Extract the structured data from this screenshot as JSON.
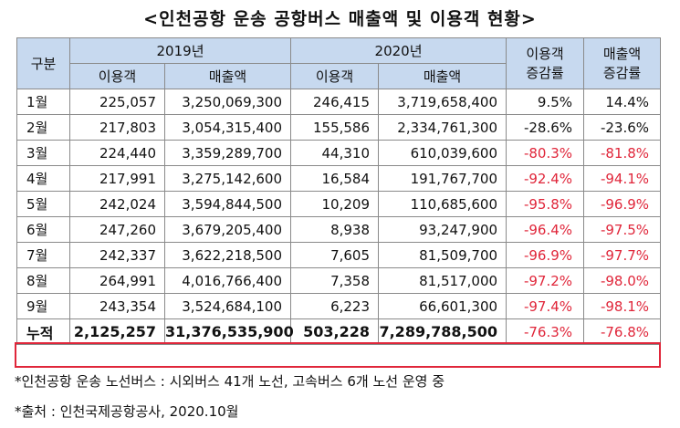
{
  "title": "<인천공항 운송 공항버스 매출액 및 이용객 현황>",
  "headers": {
    "category": "구분",
    "year1": "2019년",
    "year2": "2020년",
    "passengers": "이용객",
    "revenue": "매출액",
    "pass_change": "이용객\n증감률",
    "rev_change": "매출액\n증감률"
  },
  "rows": [
    {
      "month": "1월",
      "p2019": "225,057",
      "r2019": "3,250,069,300",
      "p2020": "246,415",
      "r2020": "3,719,658,400",
      "pchg": "9.5%",
      "rchg": "14.4%"
    },
    {
      "month": "2월",
      "p2019": "217,803",
      "r2019": "3,054,315,400",
      "p2020": "155,586",
      "r2020": "2,334,761,300",
      "pchg": "-28.6%",
      "rchg": "-23.6%"
    },
    {
      "month": "3월",
      "p2019": "224,440",
      "r2019": "3,359,289,700",
      "p2020": "44,310",
      "r2020": "610,039,600",
      "pchg": "-80.3%",
      "rchg": "-81.8%"
    },
    {
      "month": "4월",
      "p2019": "217,991",
      "r2019": "3,275,142,600",
      "p2020": "16,584",
      "r2020": "191,767,700",
      "pchg": "-92.4%",
      "rchg": "-94.1%"
    },
    {
      "month": "5월",
      "p2019": "242,024",
      "r2019": "3,594,844,500",
      "p2020": "10,209",
      "r2020": "110,685,600",
      "pchg": "-95.8%",
      "rchg": "-96.9%"
    },
    {
      "month": "6월",
      "p2019": "247,260",
      "r2019": "3,679,205,400",
      "p2020": "8,938",
      "r2020": "93,247,900",
      "pchg": "-96.4%",
      "rchg": "-97.5%"
    },
    {
      "month": "7월",
      "p2019": "242,337",
      "r2019": "3,622,218,500",
      "p2020": "7,605",
      "r2020": "81,509,700",
      "pchg": "-96.9%",
      "rchg": "-97.7%"
    },
    {
      "month": "8월",
      "p2019": "264,991",
      "r2019": "4,016,766,400",
      "p2020": "7,358",
      "r2020": "81,517,000",
      "pchg": "-97.2%",
      "rchg": "-98.0%"
    },
    {
      "month": "9월",
      "p2019": "243,354",
      "r2019": "3,524,684,100",
      "p2020": "6,223",
      "r2020": "66,601,300",
      "pchg": "-97.4%",
      "rchg": "-98.1%"
    }
  ],
  "total": {
    "month": "누적",
    "p2019": "2,125,257",
    "r2019": "31,376,535,900",
    "p2020": "503,228",
    "r2020": "7,289,788,500",
    "pchg": "-76.3%",
    "rchg": "-76.8%"
  },
  "notes": [
    "*인천공항 운송 노선버스 : 시외버스 41개 노선, 고속버스 6개 노선 운영 중",
    "*출처 : 인천국제공항공사, 2020.10월"
  ],
  "colors": {
    "negative": "#e0263a",
    "header_bg": "#c7d9ef"
  }
}
